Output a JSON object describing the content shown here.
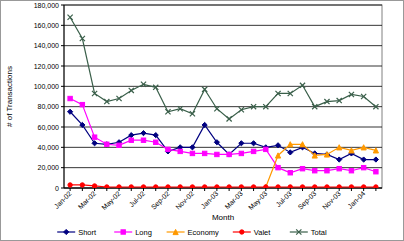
{
  "chart_data": {
    "type": "line",
    "x_label": "Month",
    "y_label": "# of Transactions",
    "categories": [
      "Jan-02",
      null,
      "Mar-02",
      null,
      "May-02",
      null,
      "Jul-02",
      null,
      "Sep-02",
      null,
      "Nov-02",
      null,
      "Jan-03",
      null,
      "Mar-03",
      null,
      "May-03",
      null,
      "Jul-03",
      null,
      "Sep-03",
      null,
      "Nov-03",
      null,
      "Jan-04",
      null
    ],
    "ylim": [
      0,
      180000
    ],
    "yticks": [
      0,
      {
        "value": 20000,
        "label": "20,000"
      },
      {
        "value": 40000,
        "label": "40,000"
      },
      {
        "value": 60000,
        "label": "60,000"
      },
      {
        "value": 80000,
        "label": "80,000"
      },
      {
        "value": 100000,
        "label": "100,000"
      },
      {
        "value": 120000,
        "label": "120,000"
      },
      {
        "value": 140000,
        "label": "140,000"
      },
      {
        "value": 160000,
        "label": "160,000"
      },
      {
        "value": 180000,
        "label": "180,000"
      }
    ],
    "grid": true,
    "legend": "bottom",
    "series": [
      {
        "name": "Short",
        "color": "#000080",
        "marker": "diamond",
        "values": [
          75000,
          62000,
          44000,
          43000,
          45000,
          52000,
          54000,
          52000,
          36000,
          40000,
          40000,
          62000,
          45000,
          33000,
          44000,
          44000,
          40000,
          42000,
          35000,
          40000,
          34000,
          33000,
          28000,
          34000,
          28000,
          28000
        ]
      },
      {
        "name": "Long",
        "color": "#ff00ff",
        "marker": "square",
        "values": [
          88000,
          82000,
          50000,
          43000,
          42000,
          47000,
          47000,
          45000,
          38000,
          36000,
          34000,
          34000,
          33000,
          33000,
          34000,
          36000,
          38000,
          20000,
          15000,
          19000,
          17000,
          17000,
          19000,
          17000,
          20000,
          16000
        ]
      },
      {
        "name": "Economy",
        "color": "#ff9900",
        "marker": "triangle",
        "values": [
          null,
          null,
          null,
          null,
          null,
          null,
          null,
          null,
          null,
          null,
          null,
          null,
          null,
          null,
          null,
          null,
          1000,
          32000,
          43000,
          43000,
          32000,
          33000,
          40000,
          37000,
          40000,
          37000
        ]
      },
      {
        "name": "Valet",
        "color": "#ff0000",
        "marker": "circle",
        "values": [
          3000,
          3000,
          2000,
          1000,
          1000,
          1000,
          1000,
          1000,
          1000,
          1000,
          1000,
          1000,
          1000,
          1000,
          1000,
          1000,
          1000,
          1000,
          1000,
          1000,
          1000,
          1000,
          1000,
          1000,
          1000,
          1000
        ]
      },
      {
        "name": "Total",
        "color": "#3a5f4a",
        "marker": "x",
        "values": [
          168000,
          147000,
          93000,
          85000,
          88000,
          96000,
          102000,
          99000,
          75000,
          78000,
          73000,
          97000,
          78000,
          68000,
          77000,
          80000,
          80000,
          93000,
          93000,
          101000,
          80000,
          85000,
          86000,
          92000,
          90000,
          80000
        ]
      }
    ]
  }
}
